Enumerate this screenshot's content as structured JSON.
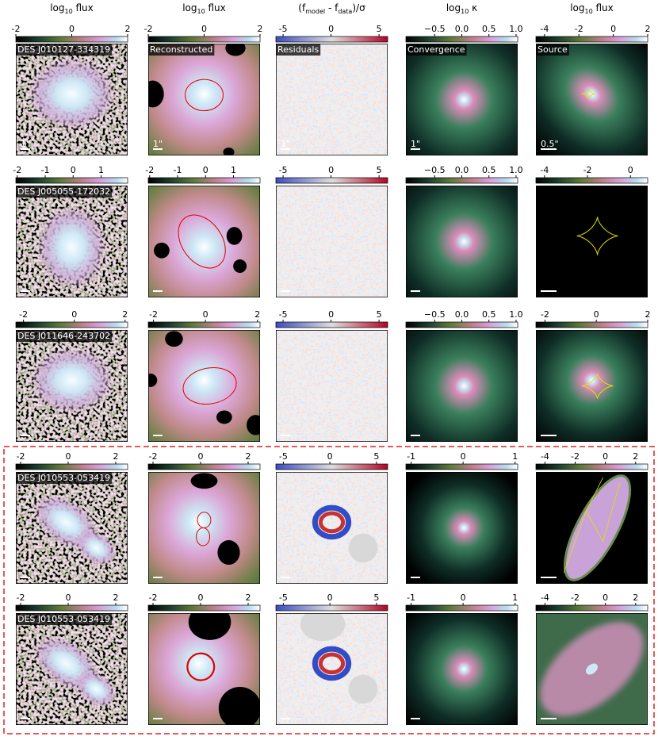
{
  "headers": [
    {
      "parts": [
        "log",
        "10",
        " flux"
      ]
    },
    {
      "parts": [
        "log",
        "10",
        " flux"
      ]
    },
    {
      "parts": [
        "(f",
        "model",
        " - f",
        "data",
        ")/σ"
      ]
    },
    {
      "parts": [
        "log",
        "10",
        " κ"
      ]
    },
    {
      "parts": [
        "log",
        "10",
        " flux"
      ]
    }
  ],
  "panel_labels": [
    "Reconstructed",
    "Residuals",
    "Convergence",
    "Source"
  ],
  "scale_labels": [
    "1\"",
    "1\"",
    "1\"",
    "1\"",
    "0.5\""
  ],
  "rows": [
    {
      "label": "DES J010127-334319",
      "colorbars": [
        {
          "lim": [
            -2,
            2
          ],
          "ticks": [
            -2,
            0,
            2
          ]
        },
        {
          "lim": [
            -2,
            2
          ],
          "ticks": [
            -2,
            0,
            2
          ]
        },
        {
          "lim": [
            -5.75,
            5.9
          ],
          "ticks": [
            -5,
            0,
            5
          ]
        },
        {
          "lim": [
            -1.03,
            1.03
          ],
          "ticks": [
            {
              "value": -0.5,
              "label": "−0.5"
            },
            {
              "value": 0,
              "label": "0.0"
            },
            {
              "value": 0.5,
              "label": "0.5"
            },
            {
              "value": 1,
              "label": "1.0"
            }
          ]
        },
        {
          "lim": [
            -4.5,
            2
          ],
          "ticks": [
            -4,
            -2,
            0,
            2
          ]
        }
      ]
    },
    {
      "label": "DES J005055-172032",
      "colorbars": [
        {
          "lim": [
            -2.05,
            1.95
          ],
          "ticks": [
            -2,
            -1,
            0,
            1
          ]
        },
        {
          "lim": [
            -2.05,
            1.95
          ],
          "ticks": [
            -2,
            -1,
            0,
            1
          ]
        },
        {
          "lim": [
            -5.75,
            5.9
          ],
          "ticks": [
            -5,
            0,
            5
          ]
        },
        {
          "lim": [
            -1.03,
            1.03
          ],
          "ticks": [
            {
              "value": -0.5,
              "label": "−0.5"
            },
            {
              "value": 0,
              "label": "0.0"
            },
            {
              "value": 0.5,
              "label": "0.5"
            },
            {
              "value": 1,
              "label": "1.0"
            }
          ]
        },
        {
          "lim": [
            -4.4,
            0.8
          ],
          "ticks": [
            -4,
            -2,
            0
          ]
        }
      ]
    },
    {
      "label": "DES J011646-243702",
      "colorbars": [
        {
          "lim": [
            -2.3,
            2.1
          ],
          "ticks": [
            -2,
            0,
            2
          ]
        },
        {
          "lim": [
            -2.2,
            2.1
          ],
          "ticks": [
            -2,
            0,
            2
          ]
        },
        {
          "lim": [
            -5.75,
            5.9
          ],
          "ticks": [
            -5,
            0,
            5
          ]
        },
        {
          "lim": [
            -1.03,
            1.03
          ],
          "ticks": [
            {
              "value": -0.5,
              "label": "−0.5"
            },
            {
              "value": 0,
              "label": "0.0"
            },
            {
              "value": 0.5,
              "label": "0.5"
            },
            {
              "value": 1,
              "label": "1.0"
            }
          ]
        },
        {
          "lim": [
            -2.35,
            2
          ],
          "ticks": [
            -2,
            0,
            2
          ]
        }
      ]
    },
    {
      "label": "DES J010553-053419",
      "colorbars": [
        {
          "lim": [
            -2.2,
            2.5
          ],
          "ticks": [
            -2,
            0,
            2
          ]
        },
        {
          "lim": [
            -2.2,
            2.5
          ],
          "ticks": [
            -2,
            0,
            2
          ]
        },
        {
          "lim": [
            -5.8,
            6.2
          ],
          "ticks": [
            -5,
            0,
            5
          ]
        },
        {
          "lim": [
            -1.1,
            1.05
          ],
          "ticks": [
            -1,
            0,
            1
          ]
        },
        {
          "lim": [
            -4.6,
            2.8
          ],
          "ticks": [
            -4,
            -2,
            0,
            2
          ]
        }
      ]
    },
    {
      "label": "DES J010553-053419",
      "colorbars": [
        {
          "lim": [
            -2.2,
            2.5
          ],
          "ticks": [
            -2,
            0,
            2
          ]
        },
        {
          "lim": [
            -2.2,
            2.5
          ],
          "ticks": [
            -2,
            0,
            2
          ]
        },
        {
          "lim": [
            -5.8,
            6.2
          ],
          "ticks": [
            -5,
            0,
            5
          ]
        },
        {
          "lim": [
            -1.1,
            1.05
          ],
          "ticks": [
            -1,
            0,
            1
          ]
        },
        {
          "lim": [
            -4.6,
            2.8
          ],
          "ticks": [
            -4,
            -2,
            0,
            2
          ]
        }
      ]
    }
  ]
}
